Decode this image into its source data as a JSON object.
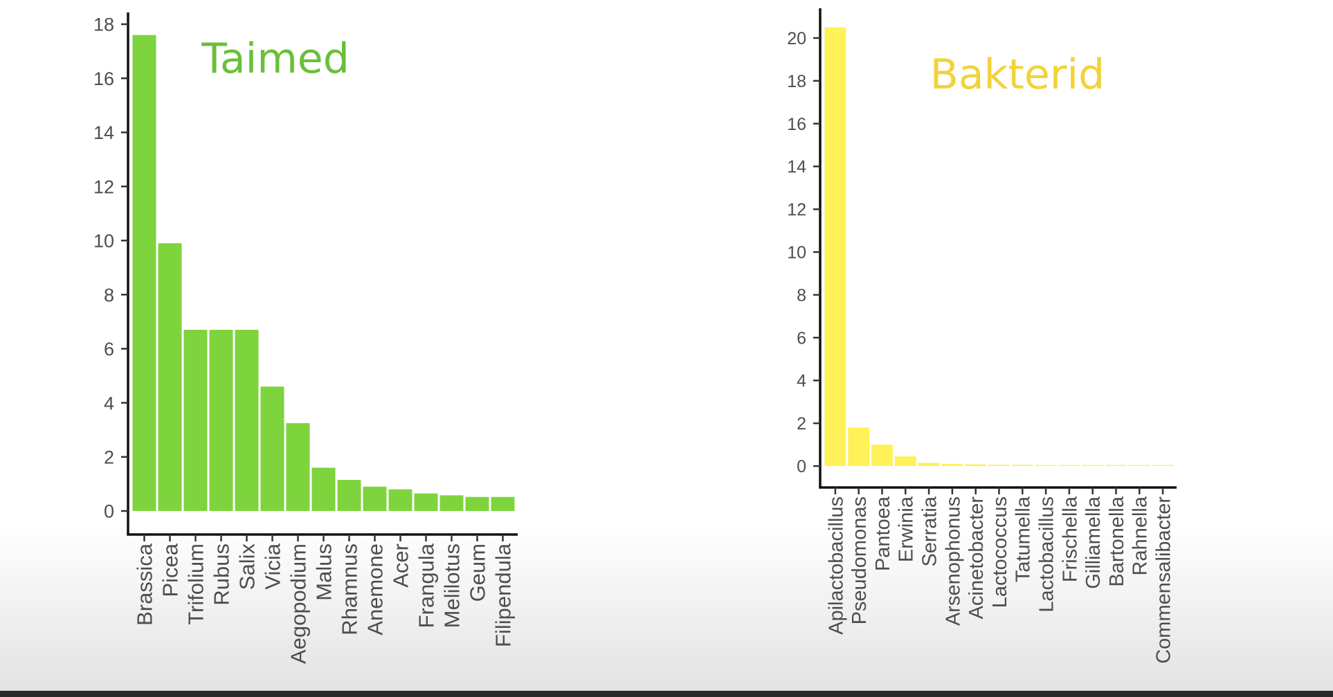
{
  "chart_data": [
    {
      "type": "bar",
      "title": "Taimed",
      "title_color": "#6abf3a",
      "bar_color": "#7ed43c",
      "categories": [
        "Brassica",
        "Picea",
        "Trifolium",
        "Rubus",
        "Salix",
        "Vicia",
        "Aegopodium",
        "Malus",
        "Rhamnus",
        "Anemone",
        "Acer",
        "Frangula",
        "Melilotus",
        "Geum",
        "Filipendula"
      ],
      "values": [
        17.6,
        9.9,
        6.7,
        6.7,
        6.7,
        4.6,
        3.25,
        1.6,
        1.15,
        0.9,
        0.8,
        0.65,
        0.58,
        0.52,
        0.52
      ],
      "yticks": [
        0,
        2,
        4,
        6,
        8,
        10,
        12,
        14,
        16,
        18
      ],
      "ylim": [
        -0.8,
        18.5
      ],
      "xlabel": "",
      "ylabel": ""
    },
    {
      "type": "bar",
      "title": "Bakterid",
      "title_color": "#f2d23a",
      "bar_color": "#fff157",
      "categories": [
        "Apilactobacillus",
        "Pseudomonas",
        "Pantoea",
        "Erwinia",
        "Serratia",
        "Arsenophonus",
        "Acinetobacter",
        "Lactococcus",
        "Tatumella",
        "Lactobacillus",
        "Frischella",
        "Gilliamella",
        "Bartonella",
        "Rahnella",
        "Commensalibacter"
      ],
      "values": [
        20.5,
        1.8,
        1.0,
        0.45,
        0.15,
        0.1,
        0.08,
        0.06,
        0.06,
        0.05,
        0.05,
        0.05,
        0.04,
        0.04,
        0.03
      ],
      "yticks": [
        0,
        2,
        4,
        6,
        8,
        10,
        12,
        14,
        16,
        18,
        20
      ],
      "ylim": [
        -1.0,
        21.5
      ],
      "xlabel": "",
      "ylabel": ""
    }
  ]
}
